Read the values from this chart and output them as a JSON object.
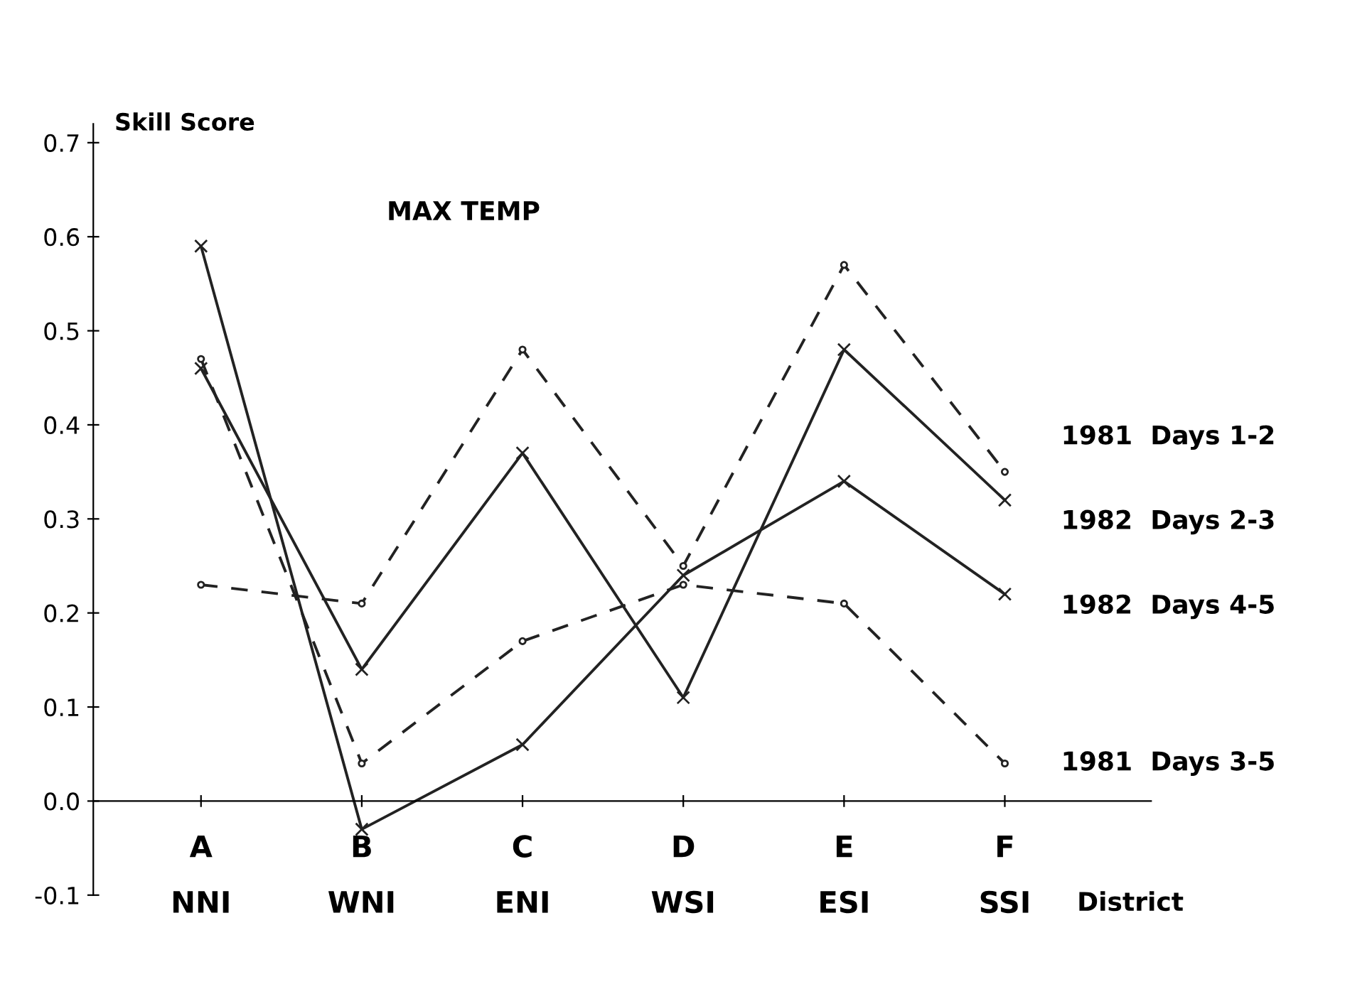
{
  "chart_data": {
    "type": "line",
    "title": "MAX TEMP",
    "ylabel": "Skill Score",
    "xlabel": "District",
    "categories": [
      "A\nNNI",
      "B\nWNI",
      "C\nENI",
      "D\nWSI",
      "E\nESI",
      "F\nSSI"
    ],
    "series": [
      {
        "name": "1981  Days 1-2",
        "color": "#222222",
        "line_style": "dashed",
        "marker": "circle",
        "values": [
          0.23,
          0.21,
          0.48,
          0.25,
          0.57,
          0.35
        ]
      },
      {
        "name": "1982  Days 2-3",
        "color": "#222222",
        "line_style": "solid",
        "marker": "cross",
        "values": [
          0.46,
          0.14,
          0.37,
          0.11,
          0.48,
          0.32
        ]
      },
      {
        "name": "1982  Days 4-5",
        "color": "#222222",
        "line_style": "solid",
        "marker": "cross",
        "values": [
          0.59,
          -0.03,
          0.06,
          0.24,
          0.34,
          0.22
        ]
      },
      {
        "name": "1981  Days 3-5",
        "color": "#222222",
        "line_style": "dashed",
        "marker": "circle",
        "values": [
          0.47,
          0.04,
          0.17,
          0.23,
          0.21,
          0.04
        ]
      }
    ],
    "ylim": [
      -0.1,
      0.72
    ],
    "yticks": [
      -0.1,
      {
        "value": 0,
        "label": "0.0"
      },
      0.1,
      0.2,
      0.3,
      0.4,
      0.5,
      0.6,
      0.7
    ],
    "grid": false,
    "legend": false
  }
}
